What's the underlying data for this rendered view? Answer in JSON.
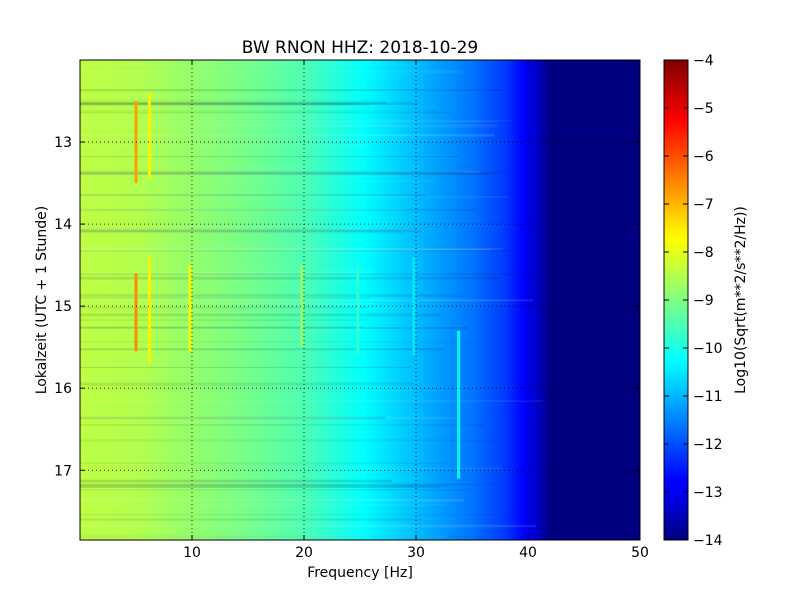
{
  "chart_data": {
    "type": "heatmap",
    "title": "BW RNON HHZ: 2018-10-29",
    "xlabel": "Frequency [Hz]",
    "ylabel": "Lokalzeit (UTC + 1 Stunde)",
    "xlim": [
      0,
      50
    ],
    "ylim": [
      12.0,
      17.85
    ],
    "y_inverted": true,
    "x_ticks": [
      10,
      20,
      30,
      40,
      50
    ],
    "y_ticks": [
      13,
      14,
      15,
      16,
      17
    ],
    "grid": true,
    "colormap": "jet",
    "colorbar": {
      "label": "Log10(Sqrt(m**2/s**2/Hz))",
      "range": [
        -14,
        -4
      ],
      "ticks": [
        -4,
        -5,
        -6,
        -7,
        -8,
        -9,
        -10,
        -11,
        -12,
        -13,
        -14
      ]
    },
    "frequency_profile": {
      "frequency_hz": [
        0,
        5,
        10,
        15,
        20,
        25,
        30,
        35,
        38,
        40,
        41,
        42,
        45,
        50
      ],
      "log10_value": [
        -8.4,
        -8.5,
        -8.8,
        -9.1,
        -9.5,
        -10.2,
        -10.9,
        -11.6,
        -12.2,
        -12.9,
        -13.4,
        -14.0,
        -14.0,
        -14.0
      ]
    },
    "features": [
      {
        "frequency_hz": 5.0,
        "time_start": 12.5,
        "time_end": 13.5,
        "log10_value": -6.8
      },
      {
        "frequency_hz": 5.0,
        "time_start": 14.6,
        "time_end": 15.55,
        "log10_value": -6.6
      },
      {
        "frequency_hz": 6.2,
        "time_start": 12.4,
        "time_end": 13.45,
        "log10_value": -7.6
      },
      {
        "frequency_hz": 6.2,
        "time_start": 14.4,
        "time_end": 15.7,
        "log10_value": -7.6
      },
      {
        "frequency_hz": 9.8,
        "time_start": 14.5,
        "time_end": 15.55,
        "log10_value": -7.8
      },
      {
        "frequency_hz": 19.8,
        "time_start": 14.5,
        "time_end": 15.5,
        "log10_value": -8.8
      },
      {
        "frequency_hz": 24.8,
        "time_start": 14.5,
        "time_end": 15.6,
        "log10_value": -9.8
      },
      {
        "frequency_hz": 29.8,
        "time_start": 14.4,
        "time_end": 15.6,
        "log10_value": -10.5
      },
      {
        "frequency_hz": 33.8,
        "time_start": 15.3,
        "time_end": 17.1,
        "log10_value": -10.3
      }
    ]
  }
}
